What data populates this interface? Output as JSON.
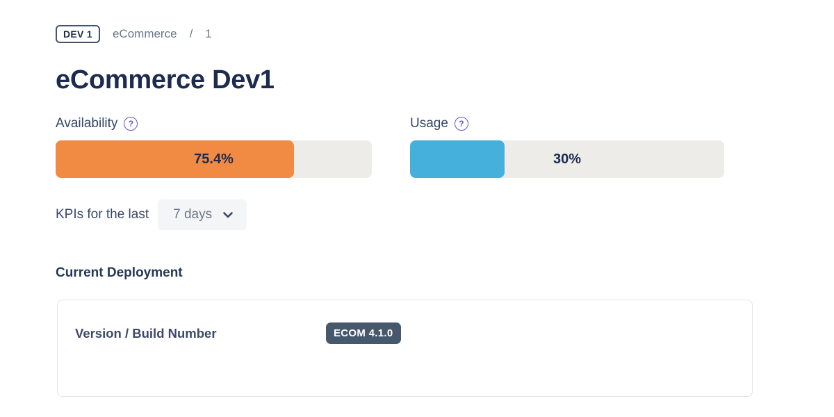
{
  "breadcrumb": {
    "env_badge": "DEV 1",
    "project": "eCommerce",
    "separator": "/",
    "page_number": "1"
  },
  "header": {
    "title": "eCommerce Dev1"
  },
  "metrics": {
    "availability": {
      "label": "Availability",
      "help_icon": "question-mark-circle-icon",
      "help_glyph": "?",
      "value_label": "75.4%",
      "percent": 75.4,
      "fill_color": "#f18b43",
      "track_color": "#edece9"
    },
    "usage": {
      "label": "Usage",
      "help_icon": "question-mark-circle-icon",
      "help_glyph": "?",
      "value_label": "30%",
      "percent": 30,
      "fill_color": "#45b0db",
      "track_color": "#edece9"
    }
  },
  "kpi_filter": {
    "label": "KPIs for the last",
    "selected_option": "7 days",
    "dropdown_icon": "chevron-down-icon"
  },
  "deployment": {
    "heading": "Current Deployment",
    "card": {
      "field_label": "Version / Build Number",
      "version_badge": "ECOM 4.1.0",
      "badge_color": "#47586d"
    }
  },
  "colors": {
    "title_navy": "#1c2b4f",
    "label_slate": "#344563",
    "breadcrumb_gray": "#6b778c",
    "help_purple": "#6554c0",
    "accent_orange": "#f18b43",
    "accent_cyan": "#45b0db",
    "track_gray": "#edece9",
    "badge_slate": "#47586d"
  }
}
